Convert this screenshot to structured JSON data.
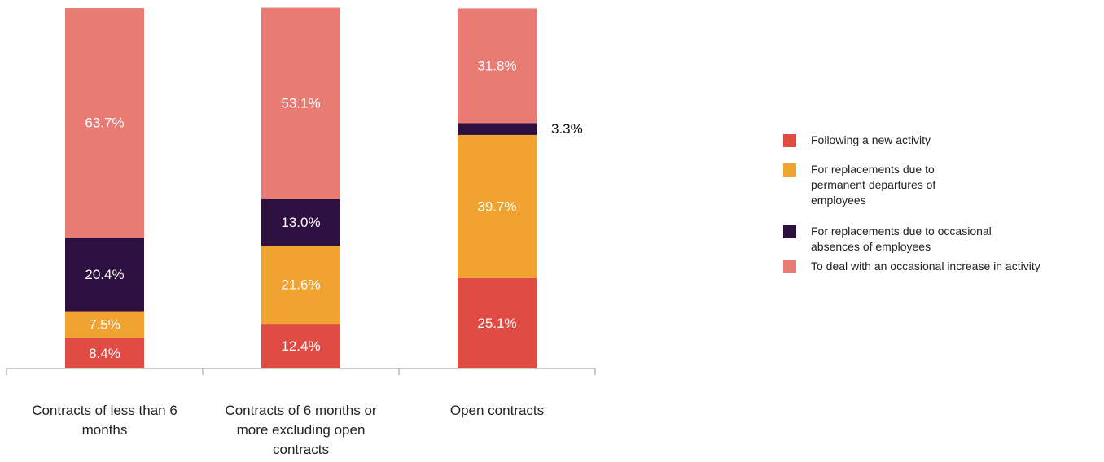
{
  "chart_data": {
    "type": "stacked_bar",
    "categories": [
      "Contracts of less than 6 months",
      "Contracts of 6 months or more excluding open contracts",
      "Open contracts"
    ],
    "ylim": [
      0,
      100
    ],
    "series": [
      {
        "name": "Following a new activity",
        "color": "#e04b44",
        "values": [
          8.4,
          12.4,
          25.1
        ],
        "value_labels": [
          "8.4%",
          "12.4%",
          "25.1%"
        ]
      },
      {
        "name": "For replacements due to permanent departures of employees",
        "color": "#f0a330",
        "values": [
          7.5,
          21.6,
          39.7
        ],
        "value_labels": [
          "7.5%",
          "21.6%",
          "39.7%"
        ]
      },
      {
        "name": "For replacements due to occasional absences of employees",
        "color": "#2e1040",
        "values": [
          20.4,
          13.0,
          3.3
        ],
        "value_labels": [
          "20.4%",
          "13.0%",
          "3.3%"
        ]
      },
      {
        "name": "To deal with an occasional increase in activity",
        "color": "#e97a74",
        "values": [
          63.7,
          53.1,
          31.8
        ],
        "value_labels": [
          "63.7%",
          "53.1%",
          "31.8%"
        ]
      }
    ]
  }
}
